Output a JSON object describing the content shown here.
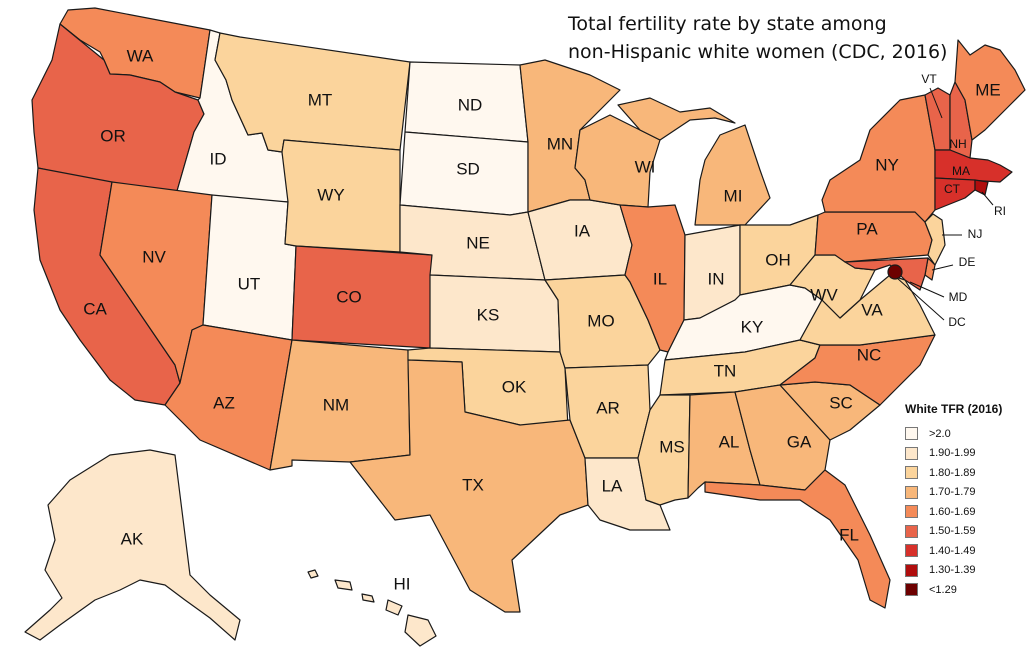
{
  "title": {
    "line1": "Total fertility rate by state among",
    "line2": "non-Hispanic white women (CDC, 2016)"
  },
  "legend": {
    "title": "White TFR (2016)",
    "items": [
      {
        "label": ">2.0",
        "color": "#fff8ef"
      },
      {
        "label": "1.90-1.99",
        "color": "#fde7cb"
      },
      {
        "label": "1.80-1.89",
        "color": "#fbd49c"
      },
      {
        "label": "1.70-1.79",
        "color": "#f8b77a"
      },
      {
        "label": "1.60-1.69",
        "color": "#f48a58"
      },
      {
        "label": "1.50-1.59",
        "color": "#e8644a"
      },
      {
        "label": "1.40-1.49",
        "color": "#d7302a"
      },
      {
        "label": "1.30-1.39",
        "color": "#b00d0d"
      },
      {
        "label": "<1.29",
        "color": "#6d0000"
      }
    ]
  },
  "states": {
    "WA": "WA",
    "OR": "OR",
    "CA": "CA",
    "ID": "ID",
    "NV": "NV",
    "UT": "UT",
    "AZ": "AZ",
    "MT": "MT",
    "WY": "WY",
    "CO": "CO",
    "NM": "NM",
    "ND": "ND",
    "SD": "SD",
    "NE": "NE",
    "KS": "KS",
    "OK": "OK",
    "TX": "TX",
    "MN": "MN",
    "IA": "IA",
    "MO": "MO",
    "AR": "AR",
    "LA": "LA",
    "WI": "WI",
    "IL": "IL",
    "MI": "MI",
    "IN": "IN",
    "OH": "OH",
    "KY": "KY",
    "TN": "TN",
    "MS": "MS",
    "AL": "AL",
    "GA": "GA",
    "FL": "FL",
    "SC": "SC",
    "NC": "NC",
    "VA": "VA",
    "WV": "WV",
    "PA": "PA",
    "NY": "NY",
    "VT": "VT",
    "NH": "NH",
    "ME": "ME",
    "MA": "MA",
    "CT": "CT",
    "RI": "RI",
    "NJ": "NJ",
    "DE": "DE",
    "MD": "MD",
    "DC": "DC",
    "AK": "AK",
    "HI": "HI"
  }
}
